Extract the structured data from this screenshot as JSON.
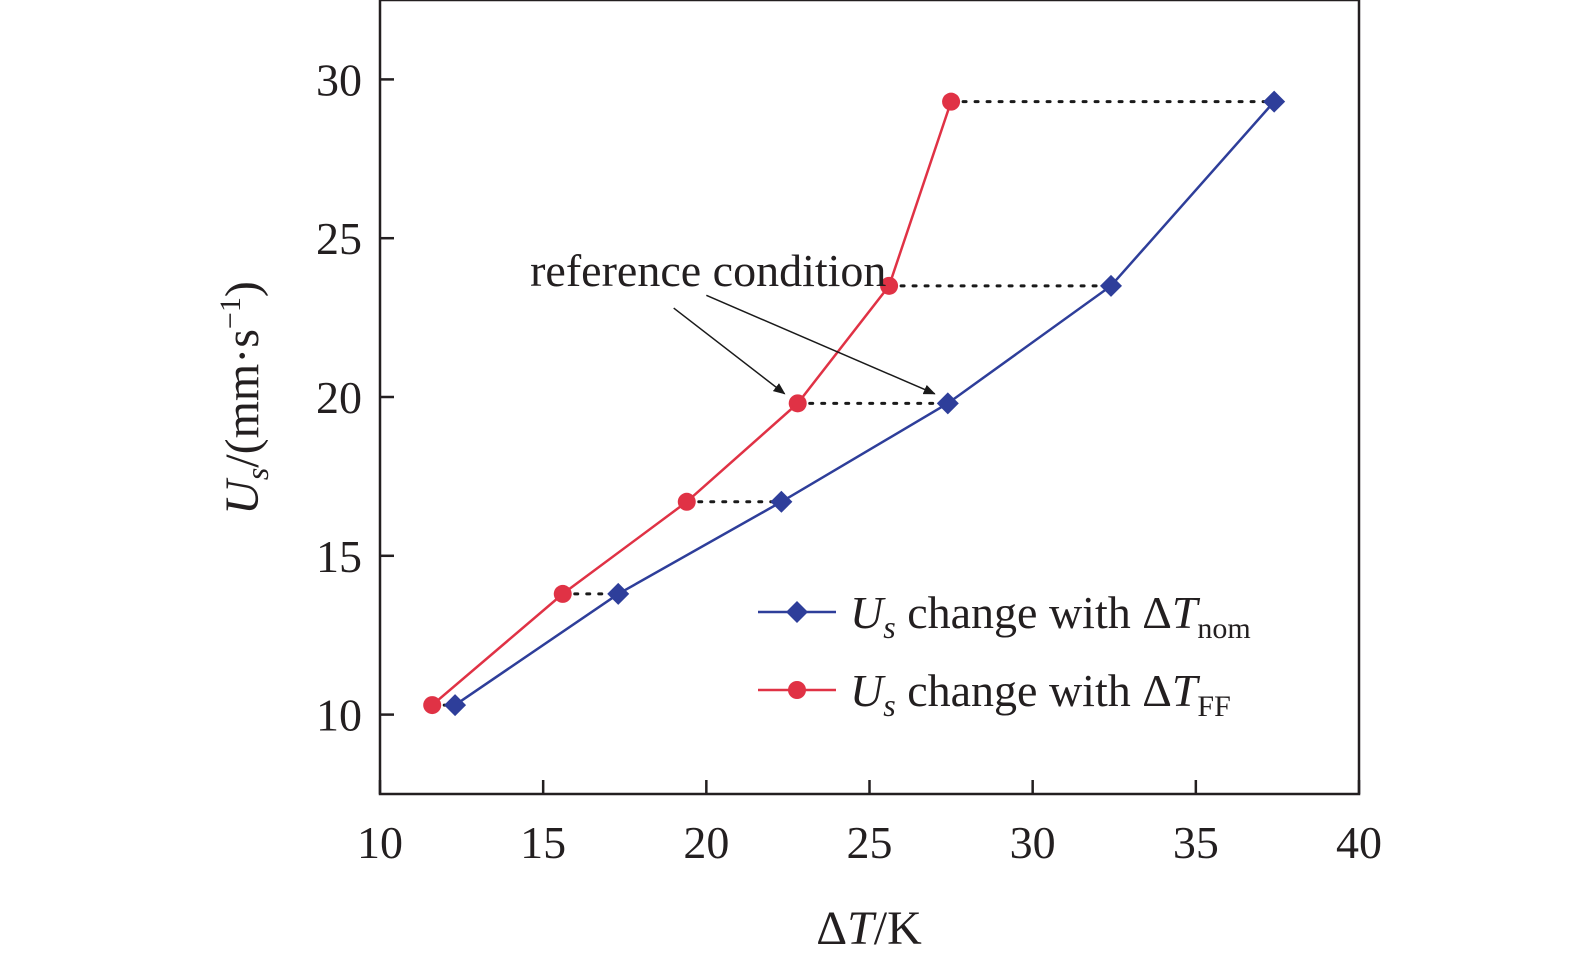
{
  "chart_data": {
    "type": "line",
    "title": "",
    "xlabel": {
      "delta": "Δ",
      "var": "T",
      "unit": "/K"
    },
    "ylabel": {
      "var": "U",
      "sub": "s",
      "unit": "/(mm·s",
      "exp": "−1",
      "close": ")"
    },
    "xlim": [
      10,
      40
    ],
    "ylim": [
      7.5,
      32.5
    ],
    "xticks": [
      10,
      15,
      20,
      25,
      30,
      35,
      40
    ],
    "yticks": [
      10,
      15,
      20,
      25,
      30
    ],
    "grid": false,
    "legend_position": "bottom-right",
    "colors": {
      "nom": "#2e3e9a",
      "ff": "#e03245",
      "guide": "#1a1a1a",
      "axis": "#231f20"
    },
    "series": [
      {
        "key": "nom",
        "marker": "diamond",
        "legend": {
          "var": "U",
          "sub": "s",
          "text": " change with Δ",
          "var2": "T",
          "sub2": "nom"
        },
        "points": [
          {
            "x": 12.3,
            "y": 10.3
          },
          {
            "x": 17.3,
            "y": 13.8
          },
          {
            "x": 22.3,
            "y": 16.7
          },
          {
            "x": 27.4,
            "y": 19.8
          },
          {
            "x": 32.4,
            "y": 23.5
          },
          {
            "x": 37.4,
            "y": 29.3
          }
        ]
      },
      {
        "key": "ff",
        "marker": "circle",
        "legend": {
          "var": "U",
          "sub": "s",
          "text": " change with Δ",
          "var2": "T",
          "sub2": "FF"
        },
        "points": [
          {
            "x": 11.6,
            "y": 10.3
          },
          {
            "x": 15.6,
            "y": 13.8
          },
          {
            "x": 19.4,
            "y": 16.7
          },
          {
            "x": 22.8,
            "y": 19.8
          },
          {
            "x": 25.6,
            "y": 23.5
          },
          {
            "x": 27.5,
            "y": 29.3
          }
        ]
      }
    ],
    "guides": [
      {
        "x1": 11.6,
        "x2": 12.3,
        "y": 10.3
      },
      {
        "x1": 15.6,
        "x2": 17.3,
        "y": 13.8
      },
      {
        "x1": 19.4,
        "x2": 22.3,
        "y": 16.7
      },
      {
        "x1": 22.8,
        "x2": 27.4,
        "y": 19.8
      },
      {
        "x1": 25.6,
        "x2": 32.4,
        "y": 23.5
      },
      {
        "x1": 27.5,
        "x2": 37.4,
        "y": 29.3
      }
    ],
    "annotation": {
      "text": "reference condition",
      "x": 14.6,
      "y": 24.0,
      "arrows": [
        {
          "from_x": 19.0,
          "from_y": 22.8,
          "to_x": 22.4,
          "to_y": 20.1
        },
        {
          "from_x": 20.0,
          "from_y": 23.2,
          "to_x": 27.0,
          "to_y": 20.1
        }
      ]
    }
  }
}
